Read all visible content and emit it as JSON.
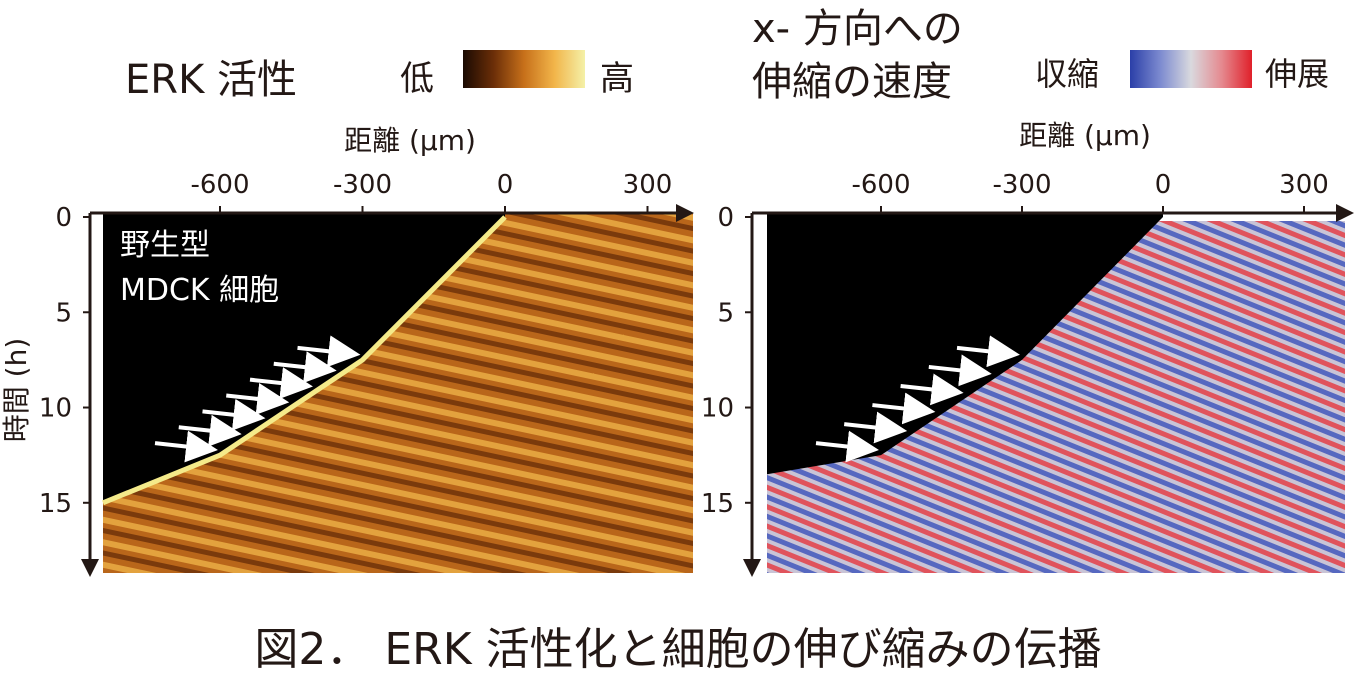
{
  "caption": "図2． ERK 活性化と細胞の伸び縮みの伝播",
  "chart_data": [
    {
      "type": "heatmap",
      "title": "ERK 活性",
      "colorbar": {
        "low_label": "低",
        "high_label": "高",
        "colors": [
          "#1a0a02",
          "#6b2e08",
          "#c7701a",
          "#f2b54a",
          "#f4f1a8"
        ]
      },
      "xlabel": "距離 (μm)",
      "ylabel": "時間 (h)",
      "xticks": [
        -600,
        -300,
        0,
        300
      ],
      "yticks": [
        0,
        5,
        10,
        15
      ],
      "xlim": [
        -870,
        390
      ],
      "ylim": [
        0,
        19
      ],
      "inset_label": [
        "野生型",
        "MDCK 細胞"
      ],
      "front_edge": [
        [
          0,
          0
        ],
        [
          -300,
          7.5
        ],
        [
          -600,
          12.5
        ],
        [
          -870,
          15
        ]
      ],
      "arrows_count": 7
    },
    {
      "type": "heatmap",
      "title": [
        "x- 方向への",
        "伸縮の速度"
      ],
      "colorbar": {
        "low_label": "収縮",
        "high_label": "伸展",
        "colors": [
          "#2b3fa8",
          "#7d8bd0",
          "#d9d9de",
          "#e58a90",
          "#e0202a"
        ]
      },
      "xlabel": "距離 (μm)",
      "ylabel": "",
      "xticks": [
        -600,
        -300,
        0,
        300
      ],
      "yticks": [
        0,
        5,
        10,
        15
      ],
      "xlim": [
        -870,
        390
      ],
      "ylim": [
        0,
        19
      ],
      "front_edge": [
        [
          0,
          0
        ],
        [
          -300,
          7.5
        ],
        [
          -600,
          12.5
        ],
        [
          -870,
          13.5
        ]
      ],
      "arrows_count": 6
    }
  ]
}
